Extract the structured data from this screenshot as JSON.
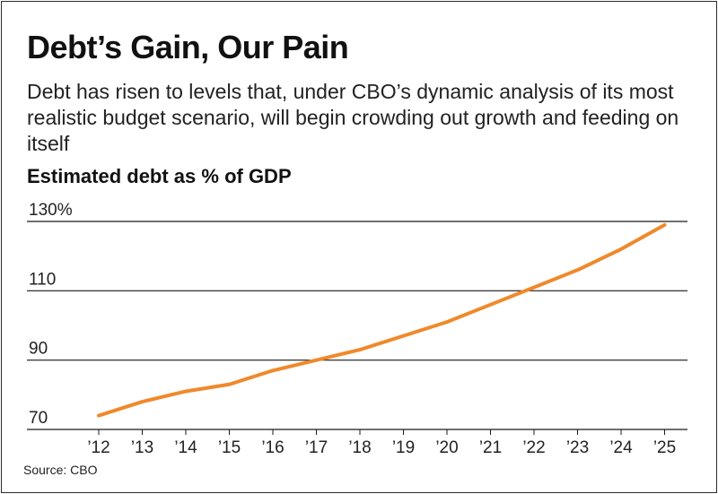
{
  "chart_data": {
    "type": "line",
    "title": "Debt’s Gain, Our Pain",
    "subtitle": "Debt has risen to levels that, under CBO’s dynamic analysis of its most realistic budget scenario, will begin crowding out growth and feeding on itself",
    "ylabel": "Estimated debt as % of GDP",
    "xlabel": "",
    "categories": [
      "’12",
      "’13",
      "’14",
      "’15",
      "’16",
      "’17",
      "’18",
      "’19",
      "’20",
      "’21",
      "’22",
      "’23",
      "’24",
      "’25"
    ],
    "series": [
      {
        "values": [
          74,
          78,
          81,
          83,
          87,
          90,
          93,
          97,
          101,
          106,
          111,
          116,
          122,
          129
        ]
      }
    ],
    "ylim": [
      70,
      130
    ],
    "y_ticks": [
      {
        "value": 70,
        "label": "70"
      },
      {
        "value": 90,
        "label": "90"
      },
      {
        "value": 110,
        "label": "110"
      },
      {
        "value": 130,
        "label": "130%"
      }
    ],
    "grid": true,
    "line_color": "#f0892b",
    "grid_color": "#1a1a1a"
  },
  "source": "Source: CBO"
}
